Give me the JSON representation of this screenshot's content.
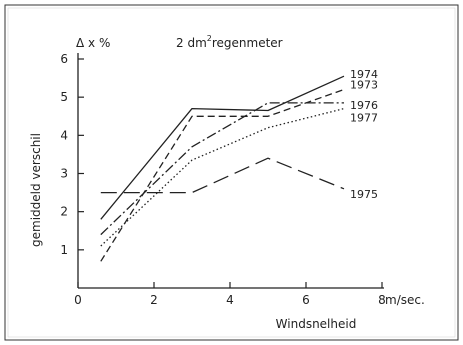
{
  "chart_data": {
    "type": "line",
    "title": "2 dm² regenmeter",
    "title_parts": {
      "before": "2 dm",
      "sup": "2",
      "after": "regenmeter"
    },
    "y_unit_label": "Δ x %",
    "ylabel": "gemiddeld verschil",
    "xlabel": "Windsnelheid",
    "x_unit": "m/sec.",
    "xlim": [
      0,
      8
    ],
    "ylim": [
      0,
      6
    ],
    "x_ticks": [
      0,
      2,
      4,
      6,
      8
    ],
    "y_ticks": [
      1,
      2,
      3,
      4,
      5,
      6
    ],
    "x_tick_labels": [
      "0",
      "2",
      "4",
      "6",
      "8"
    ],
    "y_tick_labels": [
      "1",
      "2",
      "3",
      "4",
      "5",
      "6"
    ],
    "grid": false,
    "legend": "inline labels at right end of lines",
    "series": [
      {
        "name": "1974",
        "style": "solid",
        "x": [
          0.6,
          3,
          5,
          7
        ],
        "y": [
          1.8,
          4.7,
          4.65,
          5.55
        ]
      },
      {
        "name": "1973",
        "style": "dashed",
        "x": [
          0.6,
          3,
          5,
          7
        ],
        "y": [
          0.7,
          4.5,
          4.5,
          5.2
        ]
      },
      {
        "name": "1976",
        "style": "dashdot",
        "x": [
          0.6,
          3,
          5,
          7
        ],
        "y": [
          1.4,
          3.7,
          4.85,
          4.85
        ]
      },
      {
        "name": "1977",
        "style": "dotted",
        "x": [
          0.6,
          3,
          5,
          7
        ],
        "y": [
          1.1,
          3.35,
          4.2,
          4.7
        ]
      },
      {
        "name": "1975",
        "style": "longdash",
        "x": [
          0.6,
          3,
          5,
          7
        ],
        "y": [
          2.5,
          2.5,
          3.4,
          2.6
        ]
      }
    ],
    "colors": {
      "line": "#222222",
      "frame": "#333333"
    }
  }
}
